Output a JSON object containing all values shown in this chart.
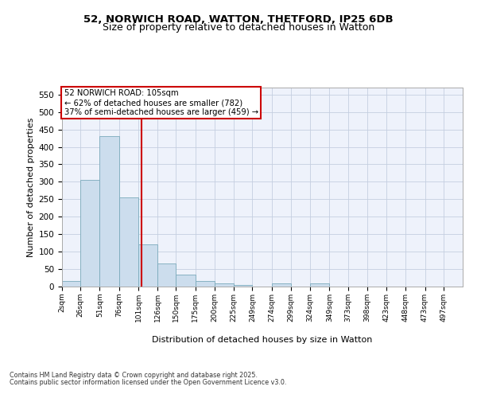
{
  "title_line1": "52, NORWICH ROAD, WATTON, THETFORD, IP25 6DB",
  "title_line2": "Size of property relative to detached houses in Watton",
  "xlabel": "Distribution of detached houses by size in Watton",
  "ylabel": "Number of detached properties",
  "bar_color": "#ccdded",
  "bar_edge_color": "#7aaabb",
  "background_color": "#ffffff",
  "plot_bg_color": "#eef2fb",
  "grid_color": "#c5cfe0",
  "annotation_text": "52 NORWICH ROAD: 105sqm\n← 62% of detached houses are smaller (782)\n37% of semi-detached houses are larger (459) →",
  "annotation_box_color": "#ffffff",
  "annotation_box_edge_color": "#cc0000",
  "vline_x": 105,
  "vline_color": "#cc0000",
  "footer_line1": "Contains HM Land Registry data © Crown copyright and database right 2025.",
  "footer_line2": "Contains public sector information licensed under the Open Government Licence v3.0.",
  "categories": [
    "2sqm",
    "26sqm",
    "51sqm",
    "76sqm",
    "101sqm",
    "126sqm",
    "150sqm",
    "175sqm",
    "200sqm",
    "225sqm",
    "249sqm",
    "274sqm",
    "299sqm",
    "324sqm",
    "349sqm",
    "373sqm",
    "398sqm",
    "423sqm",
    "448sqm",
    "473sqm",
    "497sqm"
  ],
  "bin_edges": [
    2,
    26,
    51,
    76,
    101,
    126,
    150,
    175,
    200,
    225,
    249,
    274,
    299,
    324,
    349,
    373,
    398,
    423,
    448,
    473,
    497,
    522
  ],
  "values": [
    15,
    305,
    430,
    255,
    120,
    65,
    35,
    15,
    10,
    5,
    0,
    10,
    0,
    10,
    0,
    0,
    0,
    0,
    0,
    0,
    0
  ],
  "ylim": [
    0,
    570
  ],
  "yticks": [
    0,
    50,
    100,
    150,
    200,
    250,
    300,
    350,
    400,
    450,
    500,
    550
  ]
}
